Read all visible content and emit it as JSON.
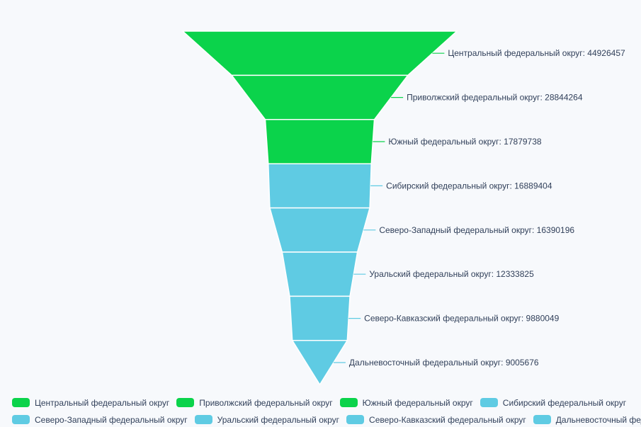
{
  "page": {
    "background": "#f7f9fc"
  },
  "chart_data": {
    "type": "funnel",
    "title": "",
    "sort": "descending",
    "orientation": "vertical",
    "label_position": "right",
    "label_format": "{name}: {value}",
    "legend_position": "bottom-left",
    "background": "#f7f9fc",
    "text_color": "#31405a",
    "border_color": "#ffffff",
    "green": "#0bd34b",
    "blue": "#5fcbe3",
    "categories": [
      "Центральный федеральный округ",
      "Приволжский федеральный округ",
      "Южный федеральный округ",
      "Сибирский федеральный округ",
      "Северо-Западный федеральный округ",
      "Уральский федеральный округ",
      "Северо-Кавказский федеральный округ",
      "Дальневосточный федеральный округ"
    ],
    "values": [
      44926457,
      28844264,
      17879738,
      16889404,
      16390196,
      12333825,
      9880049,
      9005676
    ],
    "colors": [
      "#0bd34b",
      "#0bd34b",
      "#0bd34b",
      "#5fcbe3",
      "#5fcbe3",
      "#5fcbe3",
      "#5fcbe3",
      "#5fcbe3"
    ],
    "labels": [
      "Центральный федеральный округ: 44926457",
      "Приволжский федеральный округ: 28844264",
      "Южный федеральный округ: 17879738",
      "Сибирский федеральный округ: 16889404",
      "Северо-Западный федеральный округ: 16390196",
      "Уральский федеральный округ: 12333825",
      "Северо-Кавказский федеральный округ: 9880049",
      "Дальневосточный федеральный округ: 9005676"
    ],
    "legend_rows": [
      [
        0,
        1,
        2,
        3
      ],
      [
        4,
        5,
        6,
        7
      ]
    ]
  }
}
